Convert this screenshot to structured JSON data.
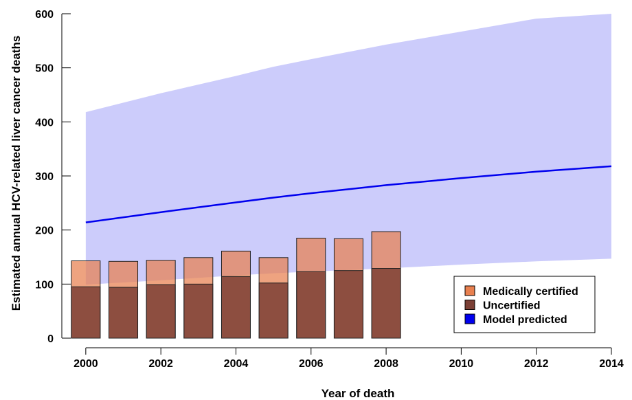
{
  "chart_data": {
    "type": "bar",
    "xlabel": "Year of death",
    "ylabel": "Estimated annual HCV-related liver cancer deaths",
    "xlim": [
      1999.6,
      2014
    ],
    "ylim": [
      0,
      600
    ],
    "xticks": [
      "2000",
      "2002",
      "2004",
      "2006",
      "2008",
      "2010",
      "2012",
      "2014"
    ],
    "yticks": [
      "0",
      "100",
      "200",
      "300",
      "400",
      "500",
      "600"
    ],
    "categories": [
      "2000",
      "2001",
      "2002",
      "2003",
      "2004",
      "2005",
      "2006",
      "2007",
      "2008"
    ],
    "series": [
      {
        "name": "Medically certified",
        "color": "#e8804f",
        "values": [
          143,
          142,
          144,
          149,
          161,
          149,
          185,
          184,
          197
        ]
      },
      {
        "name": "Uncertified",
        "color": "#7b3f35",
        "values": [
          95,
          94,
          99,
          100,
          114,
          102,
          123,
          125,
          129
        ]
      }
    ],
    "model": {
      "name": "Model predicted",
      "color": "#0000ee",
      "band_color": "#c9c9fb",
      "x": [
        2000,
        2002,
        2004,
        2005,
        2006,
        2008,
        2010,
        2012,
        2014
      ],
      "central": [
        214,
        233,
        251,
        260,
        268,
        283,
        296,
        308,
        318
      ],
      "lower": [
        99,
        107,
        116,
        120,
        123,
        129,
        136,
        142,
        147
      ],
      "upper": [
        418,
        453,
        485,
        502,
        516,
        543,
        567,
        591,
        600
      ]
    },
    "legend": {
      "position": "bottom-right",
      "items": [
        {
          "label": "Medically certified",
          "color": "#e8804f"
        },
        {
          "label": "Uncertified",
          "color": "#7b3f35"
        },
        {
          "label": "Model predicted",
          "color": "#0000ee"
        }
      ]
    },
    "grid": false
  }
}
